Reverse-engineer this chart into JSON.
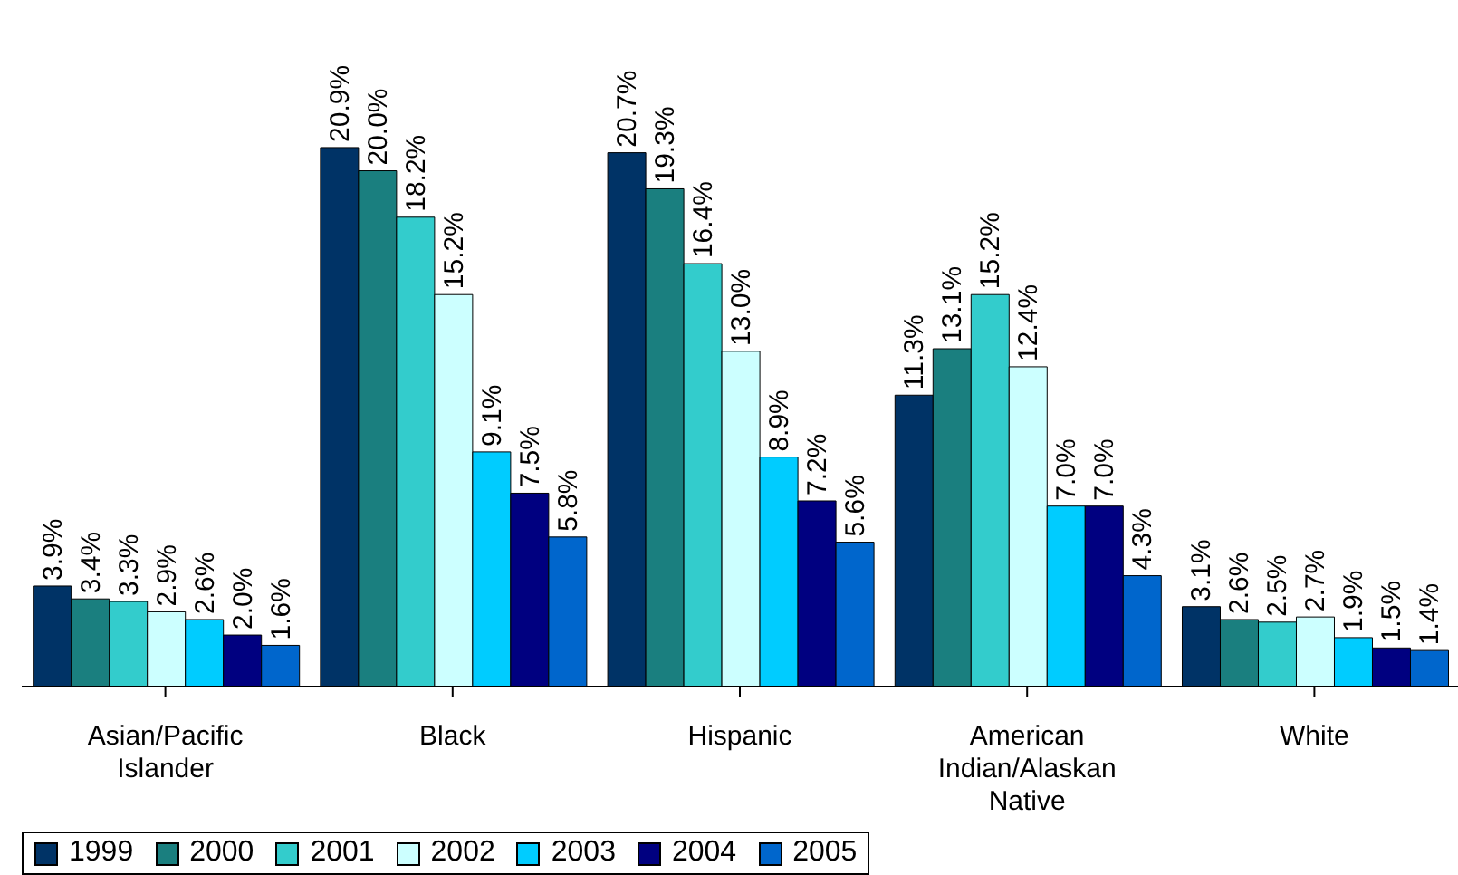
{
  "chart_data": {
    "type": "bar",
    "categories": [
      "Asian/Pacific Islander",
      "Black",
      "Hispanic",
      "American Indian/Alaskan Native",
      "White"
    ],
    "series": [
      {
        "name": "1999",
        "color": "#003366",
        "values": [
          3.9,
          20.9,
          20.7,
          11.3,
          3.1
        ],
        "value_labels": [
          "3.9%",
          "20.9%",
          "20.7%",
          "11.3%",
          "3.1%"
        ]
      },
      {
        "name": "2000",
        "color": "#1a7f7f",
        "values": [
          3.4,
          20.0,
          19.3,
          13.1,
          2.6
        ],
        "value_labels": [
          "3.4%",
          "20.0%",
          "19.3%",
          "13.1%",
          "2.6%"
        ]
      },
      {
        "name": "2001",
        "color": "#33cccc",
        "values": [
          3.3,
          18.2,
          16.4,
          15.2,
          2.5
        ],
        "value_labels": [
          "3.3%",
          "18.2%",
          "16.4%",
          "15.2%",
          "2.5%"
        ]
      },
      {
        "name": "2002",
        "color": "#ccffff",
        "values": [
          2.9,
          15.2,
          13.0,
          12.4,
          2.7
        ],
        "value_labels": [
          "2.9%",
          "15.2%",
          "13.0%",
          "12.4%",
          "2.7%"
        ]
      },
      {
        "name": "2003",
        "color": "#00ccff",
        "values": [
          2.6,
          9.1,
          8.9,
          7.0,
          1.9
        ],
        "value_labels": [
          "2.6%",
          "9.1%",
          "8.9%",
          "7.0%",
          "1.9%"
        ]
      },
      {
        "name": "2004",
        "color": "#000080",
        "values": [
          2.0,
          7.5,
          7.2,
          7.0,
          1.5
        ],
        "value_labels": [
          "2.0%",
          "7.5%",
          "7.2%",
          "7.0%",
          "1.5%"
        ]
      },
      {
        "name": "2005",
        "color": "#0066cc",
        "values": [
          1.6,
          5.8,
          5.6,
          4.3,
          1.4
        ],
        "value_labels": [
          "1.6%",
          "5.8%",
          "5.6%",
          "4.3%",
          "1.4%"
        ]
      }
    ],
    "tick_labels": "x",
    "legend": "bottom left"
  }
}
